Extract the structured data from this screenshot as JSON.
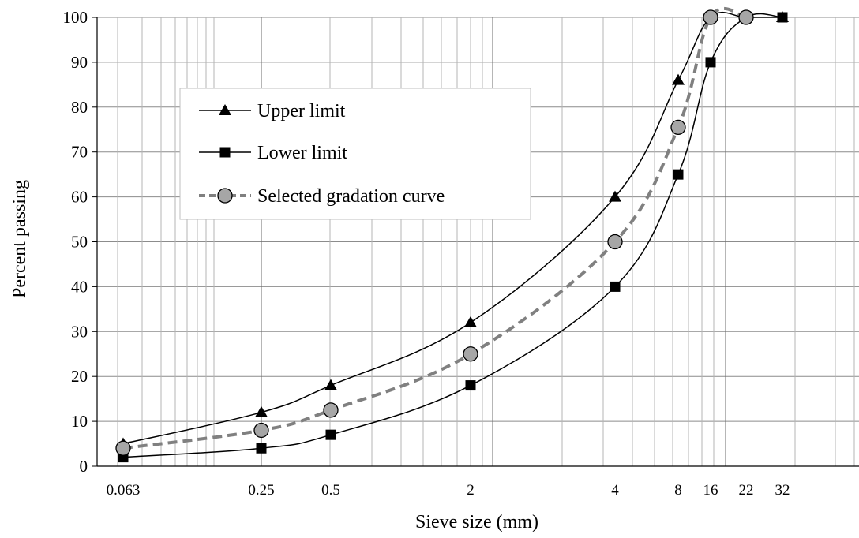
{
  "chart_data": {
    "type": "line",
    "title": "",
    "xlabel": "Sieve size (mm)",
    "ylabel": "Percent passing",
    "x_scale": "log",
    "ylim": [
      0,
      100
    ],
    "y_ticks": [
      0,
      10,
      20,
      30,
      40,
      50,
      60,
      70,
      80,
      90,
      100
    ],
    "x_tick_labels": [
      "0.063",
      "0.25",
      "0.5",
      "2",
      "4",
      "8",
      "16",
      "22",
      "32"
    ],
    "grid": true,
    "legend_position": "upper-left",
    "series": [
      {
        "name": "Upper limit",
        "marker": "triangle",
        "line": "solid",
        "color": "#000000",
        "x": [
          "0.063",
          "0.25",
          "0.5",
          "2",
          "4",
          "8",
          "16",
          "22",
          "32"
        ],
        "y": [
          5,
          12,
          18,
          32,
          60,
          86,
          100,
          100,
          100
        ]
      },
      {
        "name": "Lower limit",
        "marker": "square",
        "line": "solid",
        "color": "#000000",
        "x": [
          "0.063",
          "0.25",
          "0.5",
          "2",
          "4",
          "8",
          "16",
          "22",
          "32"
        ],
        "y": [
          2,
          4,
          7,
          18,
          40,
          65,
          90,
          100,
          100
        ]
      },
      {
        "name": "Selected gradation curve",
        "marker": "circle",
        "line": "dashed",
        "color": "#808080",
        "x": [
          "0.063",
          "0.25",
          "0.5",
          "2",
          "4",
          "8",
          "16",
          "22"
        ],
        "y": [
          4,
          8,
          12.5,
          25,
          50,
          75.5,
          100,
          100
        ]
      }
    ]
  }
}
